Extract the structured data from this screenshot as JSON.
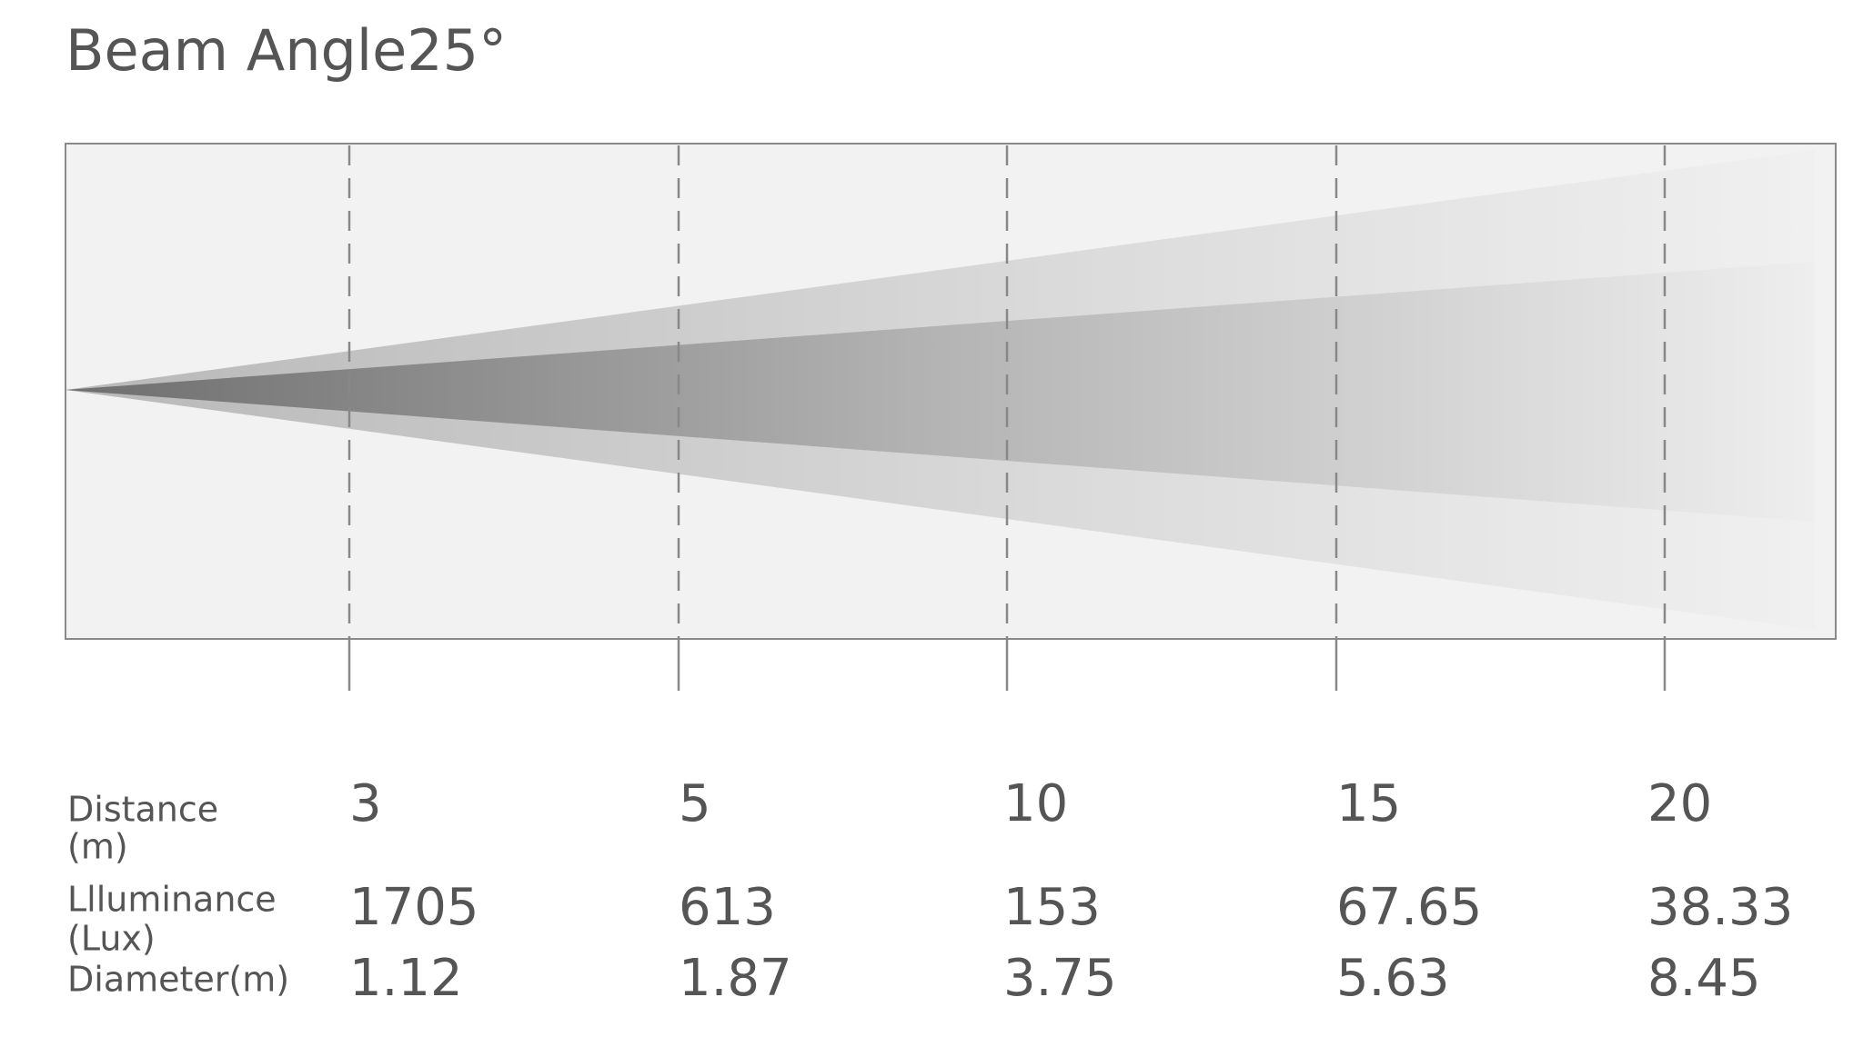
{
  "title": "Beam Angle25°",
  "table": {
    "rows": [
      {
        "label": [
          "Distance",
          "(m)"
        ],
        "values": [
          "3",
          "5",
          "10",
          "15",
          "20"
        ]
      },
      {
        "label": [
          "Llluminance",
          "(Lux)"
        ],
        "values": [
          "1705",
          "613",
          "153",
          "67.65",
          "38.33"
        ]
      },
      {
        "label": [
          "Diameter(m)"
        ],
        "values": [
          "1.12",
          "1.87",
          "3.75",
          "5.63",
          "8.45"
        ]
      }
    ]
  }
}
